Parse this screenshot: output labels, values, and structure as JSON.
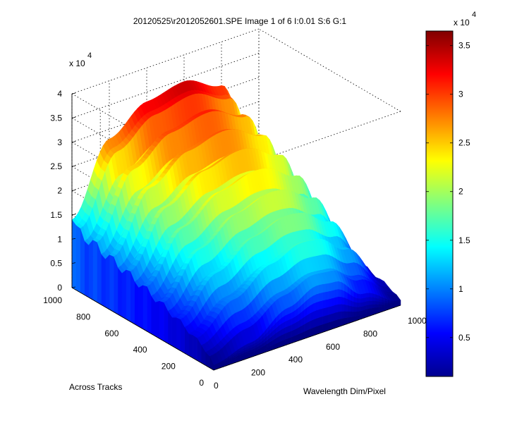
{
  "chart_data": {
    "type": "surface",
    "title": "20120525\\r2012052601.SPE  Image 1 of 6  I:0.01  S:6  G:1",
    "xlabel": "Wavelength Dim/Pixel",
    "ylabel": "Across Tracks",
    "zlabel": "",
    "x_ticks": [
      "0",
      "200",
      "400",
      "600",
      "800",
      "1000"
    ],
    "y_ticks": [
      "0",
      "200",
      "400",
      "600",
      "800",
      "1000"
    ],
    "z_ticks": [
      "0",
      "0.5",
      "1",
      "1.5",
      "2",
      "2.5",
      "3",
      "3.5",
      "4"
    ],
    "z_exponent_label": "x 10",
    "z_exponent": "4",
    "xlim": [
      0,
      1000
    ],
    "ylim": [
      0,
      1000
    ],
    "zlim": [
      0,
      40000
    ],
    "grid": true,
    "colormap": "jet",
    "colorbar": {
      "ticks": [
        "0.5",
        "1",
        "1.5",
        "2",
        "2.5",
        "3",
        "3.5"
      ],
      "tick_values": [
        5000,
        10000,
        15000,
        20000,
        25000,
        30000,
        35000
      ],
      "clim": [
        1000,
        36500
      ],
      "exponent_label": "x 10",
      "exponent": "4",
      "location": "right"
    },
    "profile": {
      "description": "broad hump along wavelength, rising with track index",
      "peak_x": 600,
      "value_at_track_0": {
        "x": [
          0,
          200,
          400,
          550,
          650,
          800,
          1000
        ],
        "z": [
          1000,
          3000,
          7500,
          10000,
          9500,
          5000,
          1000
        ]
      },
      "value_at_track_1000": {
        "x": [
          0,
          200,
          400,
          600,
          800,
          1000
        ],
        "z": [
          14000,
          28000,
          33000,
          34500,
          31000,
          8000
        ]
      },
      "max_value": 36000
    }
  }
}
